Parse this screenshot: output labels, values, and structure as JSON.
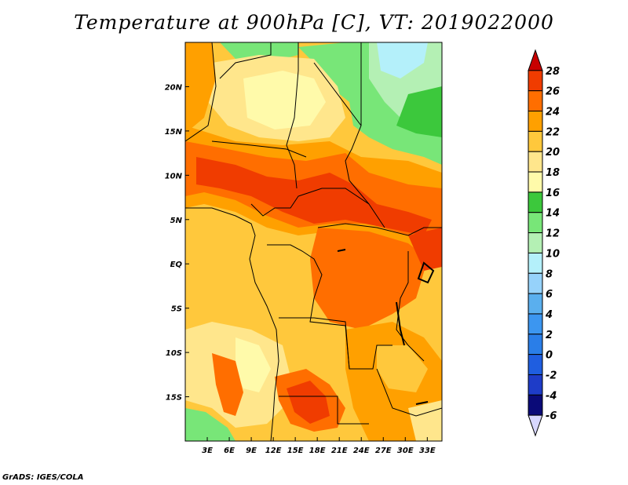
{
  "title": "Temperature at 900hPa [C], VT: 2019022000",
  "credit": "GrADS: IGES/COLA",
  "map": {
    "lon_range": [
      0,
      35
    ],
    "lat_range": [
      -20,
      25
    ],
    "x_ticks": [
      {
        "v": 3,
        "label": "3E"
      },
      {
        "v": 6,
        "label": "6E"
      },
      {
        "v": 9,
        "label": "9E"
      },
      {
        "v": 12,
        "label": "12E"
      },
      {
        "v": 15,
        "label": "15E"
      },
      {
        "v": 18,
        "label": "18E"
      },
      {
        "v": 21,
        "label": "21E"
      },
      {
        "v": 24,
        "label": "24E"
      },
      {
        "v": 27,
        "label": "27E"
      },
      {
        "v": 30,
        "label": "30E"
      },
      {
        "v": 33,
        "label": "33E"
      }
    ],
    "y_ticks": [
      {
        "v": 20,
        "label": "20N"
      },
      {
        "v": 15,
        "label": "15N"
      },
      {
        "v": 10,
        "label": "10N"
      },
      {
        "v": 5,
        "label": "5N"
      },
      {
        "v": 0,
        "label": "EQ"
      },
      {
        "v": -5,
        "label": "5S"
      },
      {
        "v": -10,
        "label": "10S"
      },
      {
        "v": -15,
        "label": "15S"
      }
    ]
  },
  "colorbar": {
    "levels": [
      "-6",
      "-4",
      "-2",
      "0",
      "2",
      "4",
      "6",
      "8",
      "10",
      "12",
      "14",
      "16",
      "18",
      "20",
      "22",
      "24",
      "26",
      "28"
    ],
    "colors": [
      "#d7d7ff",
      "#0a0a78",
      "#1e3cc8",
      "#1f5ee0",
      "#2a7ee8",
      "#3c96f0",
      "#5aafee",
      "#96d2fa",
      "#b4f0fa",
      "#b4f0b4",
      "#78e678",
      "#3cc83c",
      "#fffaaa",
      "#ffe68c",
      "#ffc83c",
      "#ffa000",
      "#ff6e00",
      "#f03c00",
      "#c80000"
    ]
  },
  "field": {
    "palette": {
      "t10": "#b4f0fa",
      "t12": "#b4f0b4",
      "t14": "#78e678",
      "t16": "#3cc83c",
      "t18": "#fffaaa",
      "t20": "#ffe68c",
      "t22": "#ffc83c",
      "t24": "#ffa000",
      "t26": "#ff6e00",
      "t28": "#f03c00"
    }
  }
}
